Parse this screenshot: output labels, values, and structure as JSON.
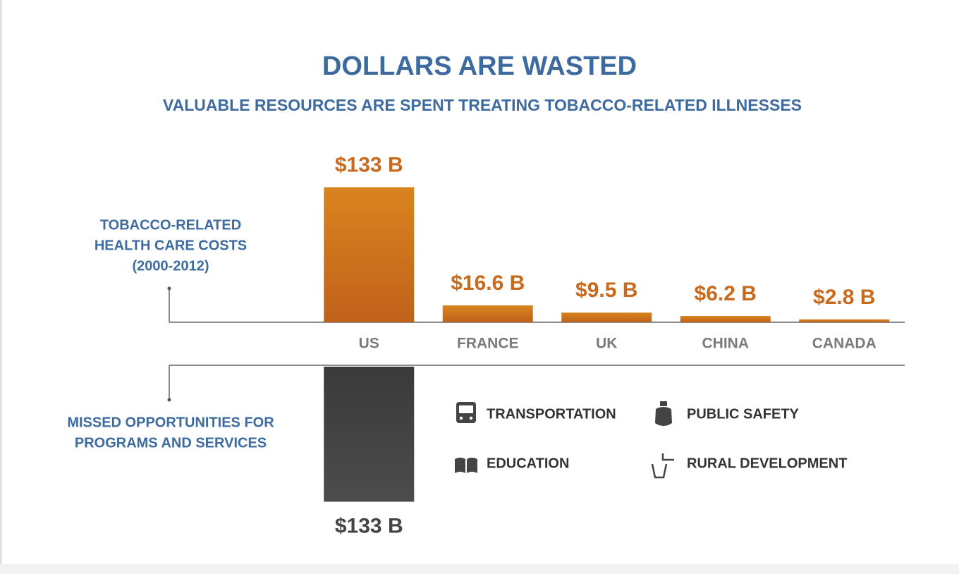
{
  "chart_data": [
    {
      "type": "bar",
      "title": "DOLLARS ARE WASTED",
      "subtitle": "VALUABLE RESOURCES ARE SPENT TREATING TOBACCO-RELATED ILLNESSES",
      "y_label": [
        "TOBACCO-RELATED",
        "HEALTH CARE COSTS",
        "(2000-2012)"
      ],
      "categories": [
        "US",
        "FRANCE",
        "UK",
        "CHINA",
        "CANADA"
      ],
      "values": [
        133,
        16.6,
        9.5,
        6.2,
        2.8
      ],
      "value_labels": [
        "$133 B",
        "$16.6 B",
        "$9.5 B",
        "$6.2 B",
        "$2.8 B"
      ],
      "color": "#c8691c",
      "direction": "up"
    },
    {
      "type": "bar",
      "y_label": [
        "MISSED OPPORTUNITIES FOR",
        "PROGRAMS AND SERVICES"
      ],
      "categories": [
        null
      ],
      "values": [
        133
      ],
      "value_labels": [
        "$133 B"
      ],
      "color": "#444444",
      "direction": "down",
      "items": [
        "TRANSPORTATION",
        "PUBLIC SAFETY",
        "EDUCATION",
        "RURAL DEVELOPMENT"
      ]
    }
  ]
}
